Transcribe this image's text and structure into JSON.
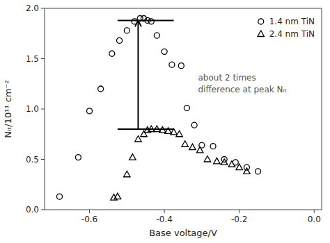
{
  "chart_data": {
    "type": "scatter",
    "xlabel": "Base voltage/V",
    "ylabel": "Nᵢₜ/10¹¹ cm⁻²",
    "xlim": [
      -0.72,
      0.02
    ],
    "ylim": [
      0,
      2.0
    ],
    "xticks": [
      -0.6,
      -0.4,
      -0.2,
      {
        "value": 0,
        "label": "0.0"
      }
    ],
    "yticks": [
      {
        "value": 0,
        "label": "0.0"
      },
      0.5,
      {
        "value": 1.0,
        "label": "1.0"
      },
      1.5,
      {
        "value": 2.0,
        "label": "2.0"
      }
    ],
    "legend": "upper right",
    "series": [
      {
        "name": "1.4 nm TiN",
        "marker": "circle",
        "color": "#000000",
        "x": [
          -0.68,
          -0.63,
          -0.6,
          -0.57,
          -0.54,
          -0.52,
          -0.5,
          -0.48,
          -0.465,
          -0.455,
          -0.445,
          -0.435,
          -0.42,
          -0.4,
          -0.38,
          -0.355,
          -0.34,
          -0.32,
          -0.3,
          -0.27,
          -0.24,
          -0.21,
          -0.18,
          -0.15
        ],
        "values": [
          0.13,
          0.52,
          0.98,
          1.2,
          1.55,
          1.68,
          1.78,
          1.87,
          1.9,
          1.9,
          1.88,
          1.87,
          1.73,
          1.57,
          1.44,
          1.43,
          1.01,
          0.84,
          0.64,
          0.63,
          0.5,
          0.47,
          0.42,
          0.38
        ]
      },
      {
        "name": "2.4 nm TiN",
        "marker": "triangle",
        "color": "#000000",
        "x": [
          -0.535,
          -0.525,
          -0.5,
          -0.485,
          -0.47,
          -0.455,
          -0.445,
          -0.435,
          -0.42,
          -0.405,
          -0.39,
          -0.375,
          -0.36,
          -0.345,
          -0.325,
          -0.305,
          -0.285,
          -0.26,
          -0.24,
          -0.22,
          -0.2,
          -0.18
        ],
        "values": [
          0.12,
          0.13,
          0.35,
          0.52,
          0.7,
          0.75,
          0.79,
          0.8,
          0.8,
          0.79,
          0.78,
          0.77,
          0.75,
          0.65,
          0.62,
          0.59,
          0.5,
          0.48,
          0.47,
          0.45,
          0.42,
          0.38
        ]
      }
    ],
    "annotations": [
      {
        "type": "hline",
        "y": 1.88,
        "x": [
          -0.525,
          -0.375
        ],
        "color": "#000000"
      },
      {
        "type": "hline",
        "y": 0.8,
        "x": [
          -0.525,
          -0.375
        ],
        "color": "#000000"
      },
      {
        "type": "arrow",
        "x": -0.47,
        "y": [
          0.8,
          1.88
        ],
        "color": "#000000"
      },
      {
        "type": "text",
        "text": [
          "about 2 times",
          "difference at peak Nᵢₜ"
        ],
        "x": -0.31,
        "y": 1.25,
        "color": "#555555"
      }
    ]
  }
}
